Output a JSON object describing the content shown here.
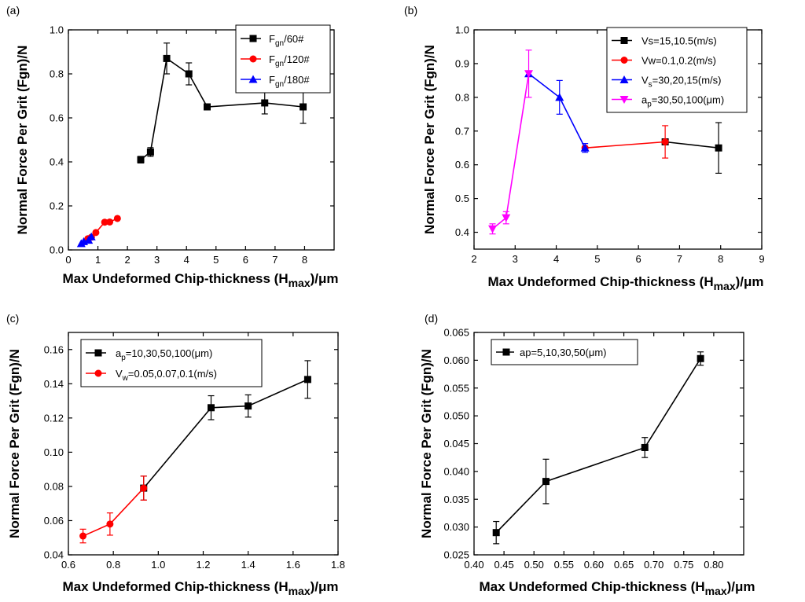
{
  "chart_data": [
    {
      "panel": "(a)",
      "type": "line",
      "xlabel_main": "Max Undeformed Chip-thickness (H",
      "xlabel_sub": "max",
      "xlabel_end": ")/μm",
      "ylabel": "Normal Force Per Grit (Fgn)/N",
      "xlim": [
        0,
        9
      ],
      "ylim": [
        0,
        1.0
      ],
      "xticks": [
        0,
        1,
        2,
        3,
        4,
        5,
        6,
        7,
        8
      ],
      "yticks": [
        0.0,
        0.2,
        0.4,
        0.6,
        0.8,
        1.0
      ],
      "yticks_text": [
        "0.0",
        "0.2",
        "0.4",
        "0.6",
        "0.8",
        "1.0"
      ],
      "legend_position": "top-right",
      "series": [
        {
          "name_main": "F",
          "name_sub": "gn",
          "name_end": "/60#",
          "color": "#000000",
          "marker": "square",
          "x": [
            2.45,
            2.78,
            3.33,
            4.08,
            4.7,
            6.65,
            7.95
          ],
          "y": [
            0.41,
            0.445,
            0.87,
            0.8,
            0.65,
            0.668,
            0.65
          ],
          "err": [
            0.015,
            0.02,
            0.07,
            0.05,
            0.01,
            0.05,
            0.075
          ]
        },
        {
          "name_main": "F",
          "name_sub": "gn",
          "name_end": "/120#",
          "color": "#ff0000",
          "marker": "circle",
          "x": [
            0.66,
            0.78,
            0.93,
            1.23,
            1.4,
            1.66
          ],
          "y": [
            0.051,
            0.058,
            0.079,
            0.126,
            0.127,
            0.143
          ],
          "err": [
            0,
            0,
            0,
            0,
            0,
            0
          ]
        },
        {
          "name_main": "F",
          "name_sub": "gn",
          "name_end": "/180#",
          "color": "#0000ff",
          "marker": "triangle",
          "x": [
            0.435,
            0.52,
            0.685,
            0.778
          ],
          "y": [
            0.029,
            0.038,
            0.044,
            0.06
          ],
          "err": [
            0,
            0,
            0,
            0
          ]
        }
      ]
    },
    {
      "panel": "(b)",
      "type": "line",
      "xlabel_main": "Max Undeformed Chip-thickness (H",
      "xlabel_sub": "max",
      "xlabel_end": ")/μm",
      "ylabel": "Normal Force Per Grit (Fgn)/N",
      "xlim": [
        2,
        9
      ],
      "ylim": [
        0.35,
        1.0
      ],
      "xticks": [
        2,
        3,
        4,
        5,
        6,
        7,
        8,
        9
      ],
      "yticks": [
        0.4,
        0.5,
        0.6,
        0.7,
        0.8,
        0.9,
        1.0
      ],
      "yticks_text": [
        "0.4",
        "0.5",
        "0.6",
        "0.7",
        "0.8",
        "0.9",
        "1.0"
      ],
      "legend_position": "top-right",
      "series": [
        {
          "name_main": "Vs=15,10.5(m/s)",
          "name_sub": "",
          "name_end": "",
          "color": "#000000",
          "marker": "square",
          "x": [
            6.65,
            7.95
          ],
          "y": [
            0.668,
            0.65
          ],
          "err": [
            0,
            0.075
          ]
        },
        {
          "name_main": "Vw=0.1,0.2(m/s)",
          "name_sub": "",
          "name_end": "",
          "color": "#ff0000",
          "marker": "circle",
          "x": [
            4.7,
            6.65
          ],
          "y": [
            0.65,
            0.668
          ],
          "err": [
            0,
            0.048
          ]
        },
        {
          "name_main": "V",
          "name_sub": "s",
          "name_end": "=30,20,15(m/s)",
          "color": "#0000ff",
          "marker": "triangle",
          "x": [
            3.33,
            4.08,
            4.7
          ],
          "y": [
            0.87,
            0.8,
            0.65
          ],
          "err": [
            0,
            0.05,
            0.013
          ]
        },
        {
          "name_main": "a",
          "name_sub": "p",
          "name_end": "=30,50,100(μm)",
          "color": "#ff00ff",
          "marker": "triangle-down",
          "x": [
            2.45,
            2.78,
            3.33
          ],
          "y": [
            0.41,
            0.443,
            0.87
          ],
          "err": [
            0.015,
            0.018,
            0.07
          ]
        }
      ]
    },
    {
      "panel": "(c)",
      "type": "line",
      "xlabel_main": "Max Undeformed Chip-thickness (H",
      "xlabel_sub": "max",
      "xlabel_end": ")/μm",
      "ylabel": "Normal Force Per Grit (Fgn)/N",
      "xlim": [
        0.6,
        1.8
      ],
      "ylim": [
        0.04,
        0.17
      ],
      "xticks": [
        0.6,
        0.8,
        1.0,
        1.2,
        1.4,
        1.6,
        1.8
      ],
      "yticks": [
        0.04,
        0.06,
        0.08,
        0.1,
        0.12,
        0.14,
        0.16
      ],
      "xticks_text": [
        "0.6",
        "0.8",
        "1.0",
        "1.2",
        "1.4",
        "1.6",
        "1.8"
      ],
      "yticks_text": [
        "0.04",
        "0.06",
        "0.08",
        "0.10",
        "0.12",
        "0.14",
        "0.16"
      ],
      "legend_position": "top-left",
      "series": [
        {
          "name_main": "a",
          "name_sub": "p",
          "name_end": "=10,30,50,100(μm)",
          "color": "#000000",
          "marker": "square",
          "x": [
            0.935,
            1.235,
            1.4,
            1.665
          ],
          "y": [
            0.079,
            0.126,
            0.127,
            0.1425
          ],
          "err": [
            0.007,
            0.007,
            0.0065,
            0.011
          ]
        },
        {
          "name_main": "V",
          "name_sub": "w",
          "name_end": "=0.05,0.07,0.1(m/s)",
          "color": "#ff0000",
          "marker": "circle",
          "x": [
            0.665,
            0.785,
            0.935
          ],
          "y": [
            0.051,
            0.058,
            0.079
          ],
          "err": [
            0.004,
            0.0065,
            0.007
          ]
        }
      ]
    },
    {
      "panel": "(d)",
      "type": "line",
      "xlabel_main": "Max Undeformed Chip-thickness (H",
      "xlabel_sub": "max",
      "xlabel_end": ")/μm",
      "ylabel": "Normal Force Per Grit (Fgn)/N",
      "xlim": [
        0.4,
        0.85
      ],
      "ylim": [
        0.025,
        0.065
      ],
      "xticks": [
        0.4,
        0.45,
        0.5,
        0.55,
        0.6,
        0.65,
        0.7,
        0.75,
        0.8
      ],
      "yticks": [
        0.025,
        0.03,
        0.035,
        0.04,
        0.045,
        0.05,
        0.055,
        0.06,
        0.065
      ],
      "xticks_text": [
        "0.40",
        "0.45",
        "0.50",
        "0.55",
        "0.60",
        "0.65",
        "0.70",
        "0.75",
        "0.80"
      ],
      "yticks_text": [
        "0.025",
        "0.030",
        "0.035",
        "0.040",
        "0.045",
        "0.050",
        "0.055",
        "0.060",
        "0.065"
      ],
      "legend_position": "top-left",
      "series": [
        {
          "name_main": "ap=5,10,30,50(μm)",
          "name_sub": "",
          "name_end": "",
          "color": "#000000",
          "marker": "square",
          "x": [
            0.437,
            0.52,
            0.685,
            0.778
          ],
          "y": [
            0.029,
            0.0382,
            0.0443,
            0.0603
          ],
          "err": [
            0.002,
            0.004,
            0.0018,
            0.0012
          ]
        }
      ]
    }
  ]
}
